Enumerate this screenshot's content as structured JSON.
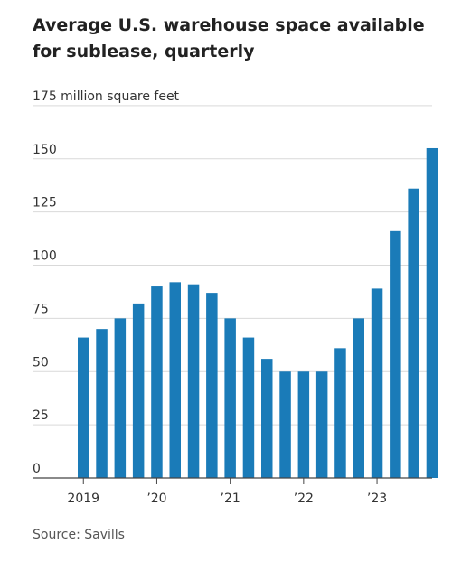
{
  "chart_data": {
    "type": "bar",
    "title": "Average U.S. warehouse space available for sublease, quarterly",
    "ylabel": "million square feet",
    "ylim": [
      0,
      175
    ],
    "yticks": [
      0,
      25,
      50,
      75,
      100,
      125,
      150,
      175
    ],
    "ytick_labels": [
      "0",
      "25",
      "50",
      "75",
      "100",
      "125",
      "150",
      "175 million square feet"
    ],
    "xtick_labels": [
      "2019",
      "’20",
      "’21",
      "’22",
      "’23"
    ],
    "xtick_bar_index": [
      0,
      4,
      8,
      12,
      16
    ],
    "categories": [
      "2019 Q1",
      "2019 Q2",
      "2019 Q3",
      "2019 Q4",
      "2020 Q1",
      "2020 Q2",
      "2020 Q3",
      "2020 Q4",
      "2021 Q1",
      "2021 Q2",
      "2021 Q3",
      "2021 Q4",
      "2022 Q1",
      "2022 Q2",
      "2022 Q3",
      "2022 Q4",
      "2023 Q1",
      "2023 Q2",
      "2023 Q3",
      "2023 Q4"
    ],
    "values": [
      66,
      70,
      75,
      82,
      90,
      92,
      91,
      87,
      75,
      66,
      56,
      50,
      50,
      50,
      61,
      75,
      89,
      116,
      136,
      155
    ],
    "bar_color": "#1a7bb8",
    "grid": true
  },
  "source": "Source: Savills"
}
